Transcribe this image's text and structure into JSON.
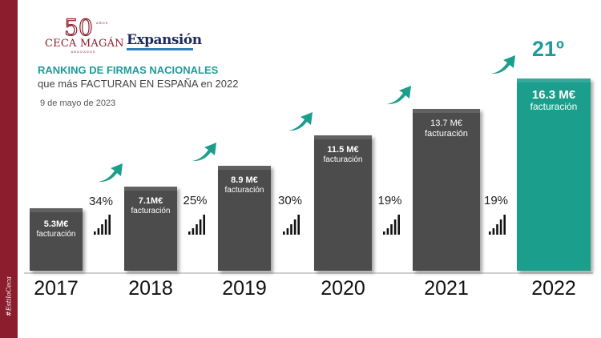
{
  "side_tag": "#EstiloCeca",
  "logos": {
    "ceca_mark": "50",
    "ceca_anos": "AÑOS",
    "ceca_name": "CECA MAGÁN",
    "ceca_sub": "ABOGADOS",
    "expansion": "Expansión"
  },
  "title": "RANKING DE FIRMAS NACIONALES",
  "subtitle": "que más FACTURAN EN ESPAÑA en 2022",
  "date": "9 de mayo de 2023",
  "rank": "21º",
  "colors": {
    "bar": "#4c4c4c",
    "highlight": "#1b9e8c",
    "title": "#1f9b9b",
    "arrow": "#1b9e8c",
    "brand": "#8b1d2c"
  },
  "chart_data": {
    "type": "bar",
    "categories": [
      "2017",
      "2018",
      "2019",
      "2020",
      "2021",
      "2022"
    ],
    "values": [
      5.3,
      7.1,
      8.9,
      11.5,
      13.7,
      16.3
    ],
    "value_labels": [
      "5.3M€",
      "7.1M€",
      "8.9 M€",
      "11.5 M€",
      "13.7 M€",
      "16.3 M€"
    ],
    "unit_label": "facturación",
    "growth_labels": [
      "34%",
      "25%",
      "30%",
      "19%",
      "19%"
    ],
    "highlight_index": 5,
    "ylim": [
      0,
      16.3
    ]
  }
}
